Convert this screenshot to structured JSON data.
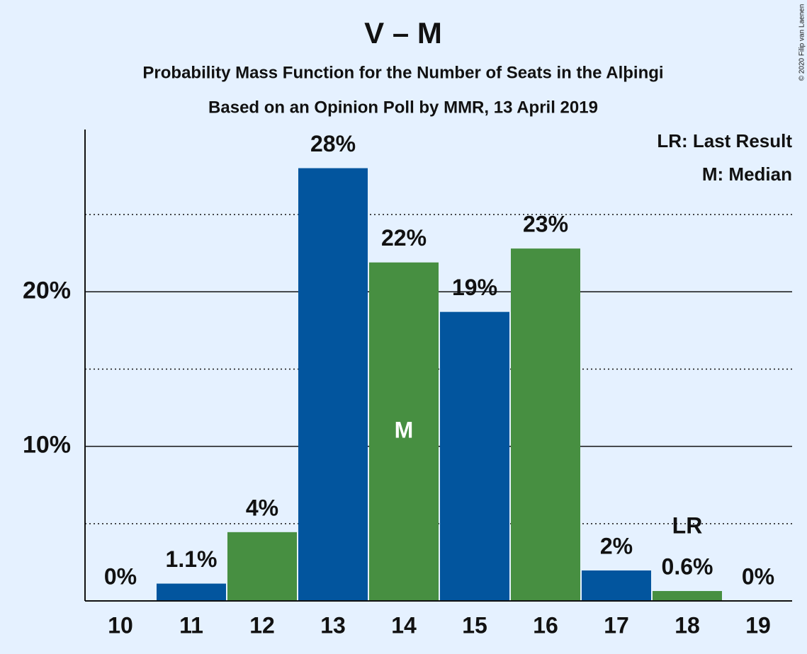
{
  "chart_data": {
    "type": "bar",
    "title": "V – M",
    "subtitle": "Probability Mass Function for the Number of Seats in the Alþingi",
    "subtitle2": "Based on an Opinion Poll by MMR, 13 April 2019",
    "categories": [
      "10",
      "11",
      "12",
      "13",
      "14",
      "15",
      "16",
      "17",
      "18",
      "19"
    ],
    "values": [
      0,
      1.12,
      4.45,
      28.0,
      21.9,
      18.7,
      22.8,
      1.97,
      0.64,
      0
    ],
    "value_labels": [
      "0%",
      "1.1%",
      "4%",
      "28%",
      "22%",
      "19%",
      "23%",
      "2%",
      "0.6%",
      "0%"
    ],
    "colors": [
      "#02559e",
      "#02559e",
      "#478f41",
      "#02559e",
      "#478f41",
      "#02559e",
      "#478f41",
      "#02559e",
      "#478f41",
      "#02559e"
    ],
    "ylim": [
      0,
      30.5
    ],
    "yticks": [
      {
        "value": 10,
        "label": "10%"
      },
      {
        "value": 20,
        "label": "20%"
      }
    ],
    "minor_yticks": [
      5,
      15,
      25
    ],
    "grid": true,
    "annotations": [
      {
        "text": "M",
        "category": "14",
        "place": "inside"
      },
      {
        "text": "LR",
        "category": "18",
        "place": "above"
      }
    ],
    "legend": [
      "LR: Last Result",
      "M: Median"
    ],
    "legend_position": "top-right",
    "credit": "© 2020 Filip van Laenen"
  }
}
